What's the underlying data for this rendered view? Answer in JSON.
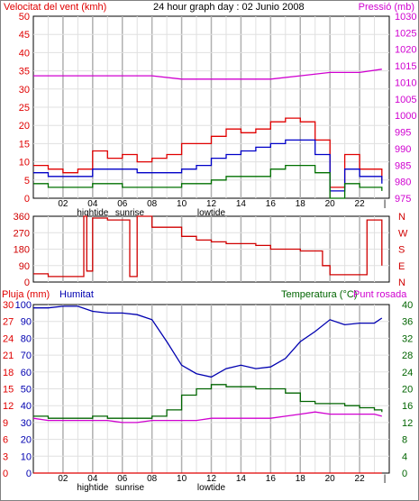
{
  "header": {
    "left_label": "Velocitat del vent (kmh)",
    "title": "24 hour graph day : 02 Junio 2008",
    "right_label": "Pressió (mb)"
  },
  "bottom_header": {
    "rain_label": "Pluja (mm)",
    "humidity_label": "Humitat",
    "temp_label": "Temperatura (°C)",
    "dew_label": "Punt rosada"
  },
  "colors": {
    "wind": "#e00000",
    "wind_avg": "#0000c8",
    "wind_min": "#007000",
    "pressure": "#d000d0",
    "direction": "#d00000",
    "humidity": "#0000b0",
    "temperature": "#006400",
    "dewpoint": "#d000d0",
    "rain": "#e00000",
    "grid_dark": "#b0b0b0",
    "grid_light": "#e0e0e0"
  },
  "time_axis": {
    "hour_labels": [
      "02",
      "04",
      "06",
      "08",
      "10",
      "12",
      "14",
      "16",
      "18",
      "20",
      "22",
      "|"
    ],
    "panel1_events": [
      {
        "label": "hightide",
        "hour": 4
      },
      {
        "label": "sunrise",
        "hour": 6.5
      },
      {
        "label": "lowtide",
        "hour": 12
      }
    ],
    "panel3_events": [
      {
        "label": "hightide",
        "hour": 4
      },
      {
        "label": "sunrise",
        "hour": 6.5
      },
      {
        "label": "lowtide",
        "hour": 12
      }
    ]
  },
  "chart_data": [
    {
      "type": "line",
      "title": "24 hour graph day : 02 Junio 2008",
      "ylabel": "Velocitat del vent (kmh)",
      "ylabel_right": "Pressió (mb)",
      "ylim": [
        0,
        50
      ],
      "ylim_right": [
        975,
        1030
      ],
      "yticks": [
        0,
        5,
        10,
        15,
        20,
        25,
        30,
        35,
        40,
        45,
        50
      ],
      "yticks_right": [
        975,
        980,
        985,
        990,
        995,
        1000,
        1005,
        1010,
        1015,
        1020,
        1025,
        1030
      ],
      "x_unit": "hour",
      "series": [
        {
          "name": "Velocitat del vent (kmh)",
          "axis": "left",
          "x": [
            0,
            1,
            2,
            3,
            4,
            5,
            6,
            7,
            8,
            9,
            10,
            11,
            12,
            13,
            14,
            15,
            16,
            17,
            18,
            19,
            20,
            21,
            22,
            23.5
          ],
          "values": [
            9,
            8,
            7,
            8,
            13,
            11,
            12,
            10,
            11,
            12,
            15,
            15,
            17,
            19,
            18,
            19,
            21,
            22,
            21,
            16,
            3,
            12,
            8,
            5
          ]
        },
        {
          "name": "wind-average",
          "axis": "left",
          "x": [
            0,
            1,
            2,
            3,
            4,
            5,
            6,
            7,
            8,
            9,
            10,
            11,
            12,
            13,
            14,
            15,
            16,
            17,
            18,
            19,
            20,
            21,
            22,
            23.5
          ],
          "values": [
            7,
            6,
            6,
            6,
            8,
            8,
            8,
            7,
            7,
            7,
            8,
            9,
            11,
            12,
            13,
            14,
            15,
            16,
            16,
            12,
            2,
            8,
            6,
            4
          ]
        },
        {
          "name": "wind-minimum",
          "axis": "left",
          "x": [
            0,
            1,
            2,
            3,
            4,
            5,
            6,
            7,
            8,
            9,
            10,
            11,
            12,
            13,
            14,
            15,
            16,
            17,
            18,
            19,
            20,
            21,
            22,
            23.5
          ],
          "values": [
            4,
            3,
            3,
            3,
            4,
            4,
            3,
            3,
            3,
            3,
            4,
            4,
            5,
            6,
            6,
            6,
            8,
            9,
            9,
            7,
            0,
            4,
            3,
            2
          ]
        },
        {
          "name": "Pressió (mb)",
          "axis": "right",
          "x": [
            0,
            2,
            4,
            6,
            8,
            10,
            12,
            14,
            16,
            18,
            20,
            22,
            23.5
          ],
          "values": [
            1012,
            1012,
            1012,
            1012,
            1012,
            1011,
            1011,
            1011,
            1011,
            1012,
            1013,
            1013,
            1014
          ]
        }
      ]
    },
    {
      "type": "line",
      "ylim": [
        0,
        360
      ],
      "yticks": [
        0,
        90,
        180,
        270,
        360
      ],
      "yticks_right_labels": [
        "N",
        "W",
        "S",
        "E",
        "N"
      ],
      "x_unit": "hour",
      "series": [
        {
          "name": "wind-direction",
          "x": [
            0,
            0.5,
            1,
            2,
            3,
            3.4,
            3.6,
            4,
            5,
            6,
            6.5,
            7,
            8,
            9,
            10,
            11,
            12,
            13,
            14,
            15,
            16,
            17,
            18,
            19,
            19.5,
            20,
            21,
            22,
            22.5,
            23,
            23.5
          ],
          "values": [
            45,
            45,
            30,
            30,
            30,
            360,
            60,
            350,
            340,
            340,
            30,
            360,
            300,
            300,
            250,
            230,
            220,
            210,
            210,
            200,
            180,
            180,
            170,
            170,
            90,
            40,
            40,
            40,
            340,
            340,
            90
          ]
        }
      ]
    },
    {
      "type": "line",
      "ylabel": "Pluja (mm)",
      "ylabel_right": "Temperatura (°C)",
      "ylim": [
        0,
        30
      ],
      "ylim_right": [
        0,
        40
      ],
      "yticks_rain": [
        0,
        3,
        6,
        9,
        12,
        15,
        18,
        21,
        24,
        27,
        30
      ],
      "yticks_humidity": [
        0,
        10,
        20,
        30,
        40,
        50,
        60,
        70,
        80,
        90,
        100
      ],
      "yticks_right": [
        0,
        4,
        8,
        12,
        16,
        20,
        24,
        28,
        32,
        36,
        40
      ],
      "x_unit": "hour",
      "series": [
        {
          "name": "Pluja (mm)",
          "axis": "rain",
          "x": [
            0,
            23.5
          ],
          "values": [
            0,
            0
          ]
        },
        {
          "name": "Humitat",
          "axis": "humidity",
          "x": [
            0,
            1,
            2,
            3,
            4,
            5,
            6,
            7,
            8,
            9,
            10,
            11,
            12,
            13,
            14,
            15,
            16,
            17,
            18,
            19,
            20,
            21,
            22,
            23,
            23.5
          ],
          "values": [
            98,
            98,
            99,
            99,
            96,
            95,
            95,
            94,
            91,
            78,
            64,
            59,
            57,
            62,
            64,
            62,
            63,
            68,
            78,
            84,
            91,
            88,
            89,
            89,
            92
          ]
        },
        {
          "name": "Temperatura (°C)",
          "axis": "right",
          "x": [
            0,
            1,
            2,
            3,
            4,
            5,
            6,
            7,
            8,
            9,
            10,
            11,
            12,
            13,
            14,
            15,
            16,
            17,
            18,
            19,
            20,
            21,
            22,
            23,
            23.5
          ],
          "values": [
            13.5,
            13,
            13,
            13,
            13.5,
            13,
            13,
            13,
            13.5,
            15,
            18.5,
            20,
            21,
            20.5,
            20.5,
            20,
            20,
            19,
            17,
            16.5,
            16.5,
            16,
            15.5,
            15,
            14.5
          ]
        },
        {
          "name": "Punt rosada",
          "axis": "right",
          "x": [
            0,
            1,
            2,
            3,
            4,
            5,
            6,
            7,
            8,
            9,
            10,
            11,
            12,
            13,
            14,
            15,
            16,
            17,
            18,
            19,
            20,
            21,
            22,
            23,
            23.5
          ],
          "values": [
            13,
            12.5,
            12.5,
            12.5,
            12.5,
            12.5,
            12,
            12,
            12.5,
            12.5,
            12.5,
            12.5,
            13,
            13,
            13,
            13,
            13,
            13.5,
            14,
            14.5,
            14,
            14,
            14,
            14,
            13.5
          ]
        }
      ]
    }
  ]
}
